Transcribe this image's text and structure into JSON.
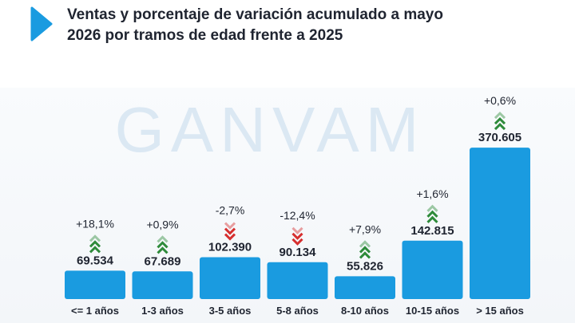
{
  "title": {
    "line1": "Ventas y porcentaje de variación acumulado a mayo",
    "line2": "2026 por tramos de edad frente a 2025"
  },
  "watermark": "GANVAM",
  "colors": {
    "bar": "#1a9be0",
    "accent": "#1a9be0",
    "up": "#2e8b3a",
    "down": "#d62f2f",
    "text": "#1f2430",
    "watermark": "#dbe8f3"
  },
  "chart_data": {
    "type": "bar",
    "categories": [
      "<= 1 años",
      "1-3 años",
      "3-5 años",
      "5-8 años",
      "8-10 años",
      "10-15 años",
      "> 15 años"
    ],
    "values": [
      69534,
      67689,
      102390,
      90134,
      55826,
      142815,
      370605
    ],
    "value_labels": [
      "69.534",
      "67.689",
      "102.390",
      "90.134",
      "55.826",
      "142.815",
      "370.605"
    ],
    "variation_labels": [
      "+18,1%",
      "+0,9%",
      "-2,7%",
      "-12,4%",
      "+7,9%",
      "+1,6%",
      "+0,6%"
    ],
    "variation_direction": [
      "up",
      "up",
      "down",
      "down",
      "up",
      "up",
      "up"
    ],
    "title": "",
    "xlabel": "",
    "ylabel": "",
    "ylim": [
      0,
      400000
    ],
    "grid": false,
    "legend": "none"
  }
}
